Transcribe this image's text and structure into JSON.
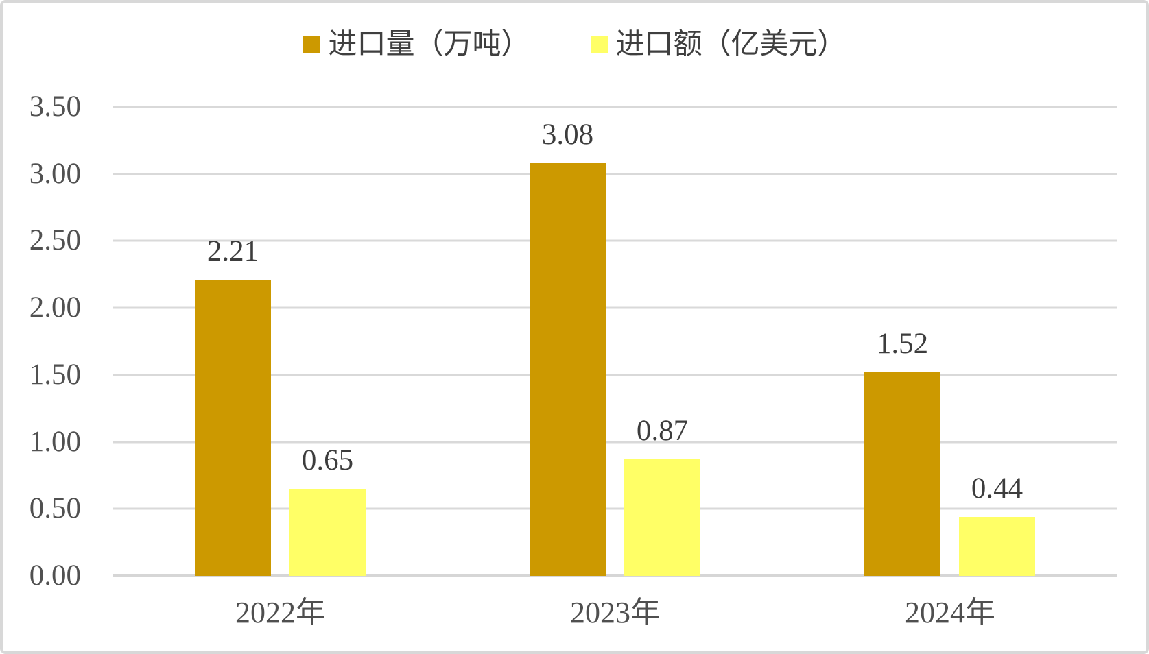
{
  "chart_data": {
    "type": "bar",
    "title": "",
    "categories": [
      "2022年",
      "2023年",
      "2024年"
    ],
    "series": [
      {
        "name": "进口量（万吨）",
        "color": "#CC9900",
        "values": [
          2.21,
          3.08,
          1.52
        ],
        "labels": [
          "2.21",
          "3.08",
          "1.52"
        ]
      },
      {
        "name": "进口额（亿美元）",
        "color": "#FFFF66",
        "values": [
          0.65,
          0.87,
          0.44
        ],
        "labels": [
          "0.65",
          "0.87",
          "0.44"
        ]
      }
    ],
    "xlabel": "",
    "ylabel": "",
    "ylim": [
      0,
      3.5
    ],
    "ytick_step": 0.5,
    "ytick_labels": [
      "3.50",
      "3.00",
      "2.50",
      "2.00",
      "1.50",
      "1.00",
      "0.50",
      "0.00"
    ],
    "grid": true,
    "legend_position": "top",
    "data_labels": true
  },
  "style": {
    "grid_color": "#d9d9d9",
    "axis_line_color": "#d6d6d6",
    "axis_text_color": "#515151",
    "data_label_color": "#3d3d3d",
    "border_color": "#d8d8d8",
    "background": "#ffffff"
  }
}
